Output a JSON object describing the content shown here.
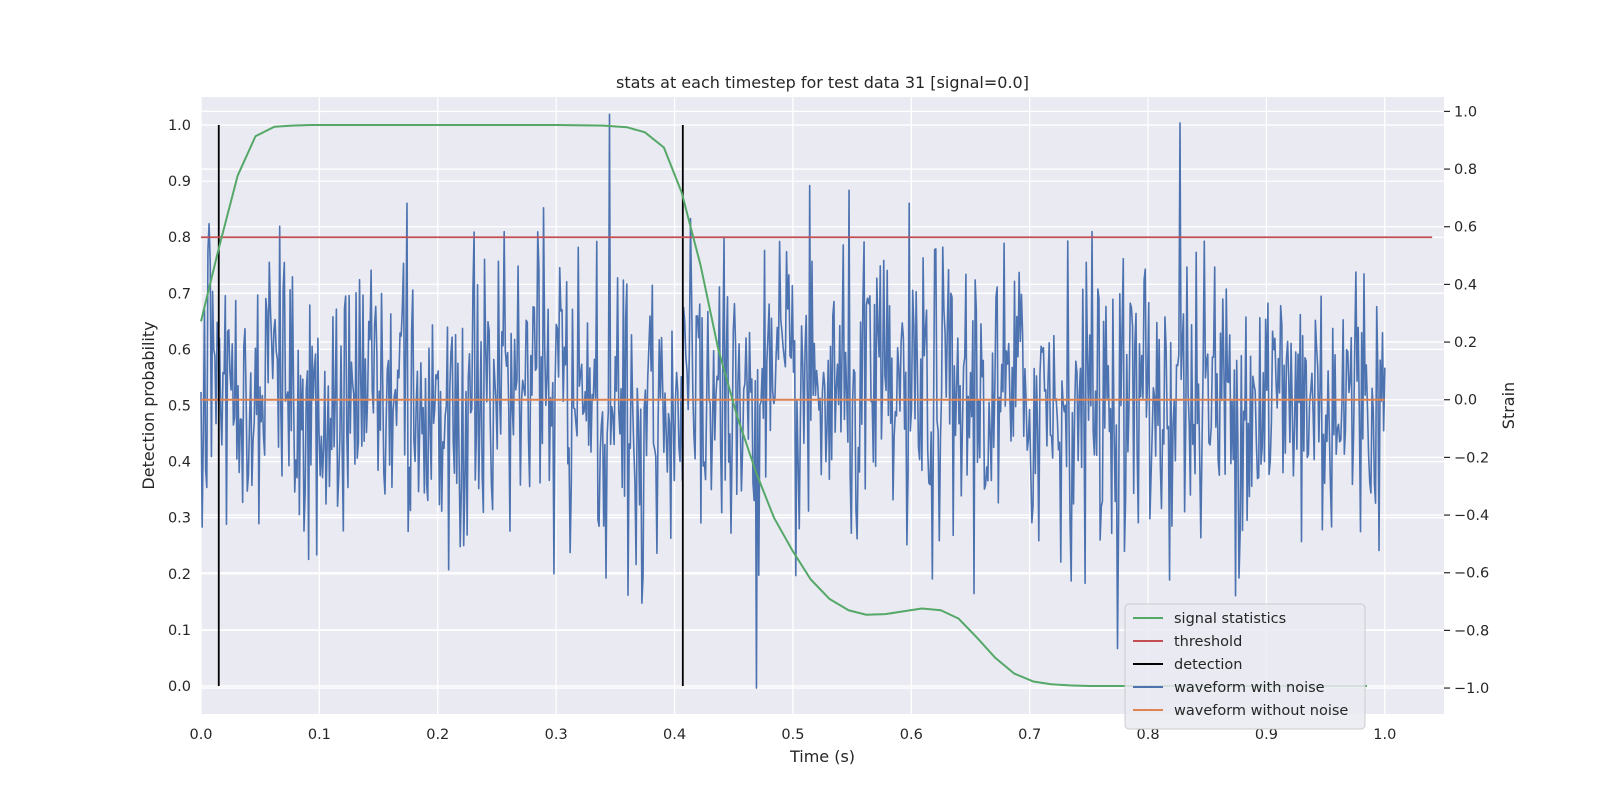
{
  "chart_data": {
    "type": "line",
    "title": "stats at each timestep for test data 31 [signal=0.0]",
    "xlabel": "Time (s)",
    "ylabel": "Detection probability",
    "ylabel_right": "Strain",
    "xlim": [
      0.0,
      1.05
    ],
    "ylim": [
      -0.05,
      1.05
    ],
    "ylim_right": [
      -1.09,
      1.05
    ],
    "x_ticks": [
      "0.0",
      "0.1",
      "0.2",
      "0.3",
      "0.4",
      "0.5",
      "0.6",
      "0.7",
      "0.8",
      "0.9",
      "1.0"
    ],
    "y_ticks": [
      "0.0",
      "0.1",
      "0.2",
      "0.3",
      "0.4",
      "0.5",
      "0.6",
      "0.7",
      "0.8",
      "0.9",
      "1.0"
    ],
    "y_right_ticks": [
      "−1.0",
      "−0.8",
      "−0.6",
      "−0.4",
      "−0.2",
      "0.0",
      "0.2",
      "0.4",
      "0.6",
      "0.8",
      "1.0"
    ],
    "grid": true,
    "legend_position": "bottom-right",
    "colors": {
      "signal_statistics": "#55a868",
      "threshold": "#c44e52",
      "detection": "#000000",
      "waveform_with_noise": "#4c72b0",
      "waveform_without_noise": "#dd8452",
      "axes_background": "#eaeaf2",
      "grid": "#ffffff"
    },
    "series": [
      {
        "name": "signal statistics",
        "axis": "left",
        "x": [
          0.0,
          0.015,
          0.031,
          0.046,
          0.062,
          0.077,
          0.093,
          0.108,
          0.2,
          0.3,
          0.34,
          0.36,
          0.375,
          0.391,
          0.406,
          0.422,
          0.437,
          0.453,
          0.469,
          0.484,
          0.5,
          0.515,
          0.531,
          0.547,
          0.562,
          0.578,
          0.593,
          0.609,
          0.625,
          0.64,
          0.656,
          0.671,
          0.687,
          0.703,
          0.718,
          0.734,
          0.75,
          0.8,
          0.9,
          0.985
        ],
        "y": [
          0.65,
          0.78,
          0.91,
          0.98,
          0.997,
          0.999,
          1.0,
          1.0,
          1.0,
          1.0,
          0.999,
          0.996,
          0.987,
          0.96,
          0.88,
          0.75,
          0.6,
          0.48,
          0.38,
          0.3,
          0.24,
          0.19,
          0.155,
          0.135,
          0.127,
          0.128,
          0.133,
          0.138,
          0.135,
          0.12,
          0.085,
          0.05,
          0.022,
          0.008,
          0.003,
          0.001,
          0.0,
          0.0,
          0.0,
          0.0
        ]
      },
      {
        "name": "threshold",
        "axis": "left",
        "x": [
          0.0,
          1.04
        ],
        "y": [
          0.8,
          0.8
        ]
      },
      {
        "name": "detection",
        "axis": "left",
        "x": [
          0.015,
          0.407
        ],
        "y": [
          0.0,
          1.0
        ]
      },
      {
        "name": "waveform with noise",
        "axis": "right",
        "x_start": 0.0,
        "x_end": 1.0,
        "n_samples": 1024,
        "y_min": -1.0,
        "y_max": 1.0,
        "note_stat": "noise strain, std about 0.25"
      },
      {
        "name": "waveform without noise",
        "axis": "right",
        "x": [
          0.0,
          1.0
        ],
        "y": [
          0.0,
          0.0
        ]
      }
    ]
  }
}
